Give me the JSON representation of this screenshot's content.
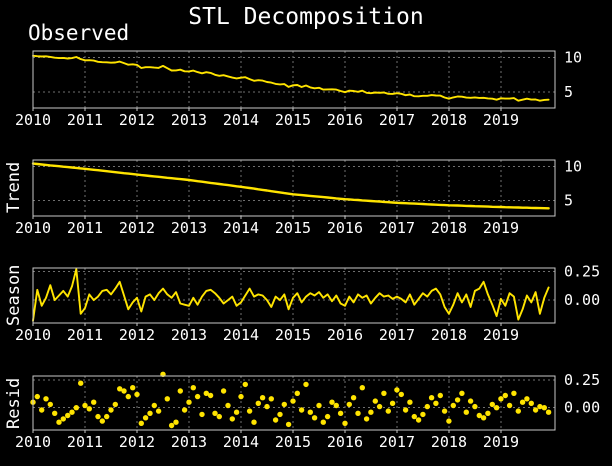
{
  "figure": {
    "title": "STL Decomposition",
    "background_color": "#000000",
    "text_color": "#ffffff",
    "series_color": "#ffe400",
    "grid_color": "#6f6f6f",
    "spine_color": "#c9c9c9"
  },
  "chart_data": [
    {
      "type": "line",
      "label": "Observed",
      "label_position": "top",
      "x_range": [
        2010,
        2020.04
      ],
      "points_per_year": 12,
      "x_ticks": [
        {
          "v": 2010,
          "label": "2010"
        },
        {
          "v": 2011,
          "label": "2011"
        },
        {
          "v": 2012,
          "label": "2012"
        },
        {
          "v": 2013,
          "label": "2013"
        },
        {
          "v": 2014,
          "label": "2014"
        },
        {
          "v": 2015,
          "label": "2015"
        },
        {
          "v": 2016,
          "label": "2016"
        },
        {
          "v": 2017,
          "label": "2017"
        },
        {
          "v": 2018,
          "label": "2018"
        },
        {
          "v": 2019,
          "label": "2019"
        }
      ],
      "y_ticks": [
        {
          "v": 10,
          "label": "10"
        },
        {
          "v": 5,
          "label": "5"
        }
      ],
      "ylim": [
        2.7,
        10.95
      ],
      "grid": true,
      "legend": "none",
      "values": [
        10.25,
        10.2,
        10.15,
        10.18,
        10.1,
        9.98,
        9.92,
        9.95,
        9.87,
        9.92,
        10.08,
        9.78,
        9.6,
        9.62,
        9.56,
        9.39,
        9.33,
        9.31,
        9.26,
        9.28,
        9.41,
        9.2,
        8.96,
        9.03,
        8.94,
        8.49,
        8.61,
        8.6,
        8.55,
        8.5,
        8.8,
        8.46,
        8.13,
        8.14,
        8.25,
        8.01,
        8.0,
        8.12,
        7.89,
        7.72,
        7.88,
        7.78,
        7.51,
        7.36,
        7.45,
        7.27,
        7.1,
        6.99,
        7.08,
        7.16,
        6.89,
        6.63,
        6.72,
        6.67,
        6.46,
        6.38,
        6.19,
        6.12,
        6.16,
        5.76,
        5.98,
        6.03,
        5.74,
        5.96,
        5.68,
        5.55,
        5.63,
        5.37,
        5.39,
        5.4,
        5.36,
        5.16,
        4.99,
        5.2,
        5.16,
        5.05,
        5.2,
        4.9,
        4.84,
        4.95,
        4.9,
        4.94,
        4.75,
        4.74,
        4.84,
        4.75,
        4.55,
        4.66,
        4.41,
        4.4,
        4.47,
        4.47,
        4.57,
        4.51,
        4.5,
        4.22,
        4.04,
        4.24,
        4.37,
        4.33,
        4.2,
        4.17,
        4.24,
        4.16,
        4.18,
        4.09,
        4.05,
        3.9,
        4.11,
        4.06,
        4.06,
        4.13,
        3.75,
        3.9,
        4.04,
        3.92,
        3.93,
        3.76,
        3.87,
        3.9
      ]
    },
    {
      "type": "line",
      "label": "Trend",
      "label_position": "left",
      "x_range": [
        2010,
        2020.04
      ],
      "points_per_year": 12,
      "x_ticks": [
        {
          "v": 2010,
          "label": "2010"
        },
        {
          "v": 2011,
          "label": "2011"
        },
        {
          "v": 2012,
          "label": "2012"
        },
        {
          "v": 2013,
          "label": "2013"
        },
        {
          "v": 2014,
          "label": "2014"
        },
        {
          "v": 2015,
          "label": "2015"
        },
        {
          "v": 2016,
          "label": "2016"
        },
        {
          "v": 2017,
          "label": "2017"
        },
        {
          "v": 2018,
          "label": "2018"
        },
        {
          "v": 2019,
          "label": "2019"
        }
      ],
      "y_ticks": [
        {
          "v": 10,
          "label": "10"
        },
        {
          "v": 5,
          "label": "5"
        }
      ],
      "ylim": [
        2.7,
        10.95
      ],
      "grid": true,
      "legend": "none",
      "values": [
        10.42,
        10.36,
        10.29,
        10.23,
        10.16,
        10.1,
        10.04,
        9.97,
        9.91,
        9.84,
        9.78,
        9.71,
        9.65,
        9.58,
        9.51,
        9.44,
        9.37,
        9.3,
        9.23,
        9.15,
        9.08,
        9.01,
        8.94,
        8.87,
        8.8,
        8.73,
        8.67,
        8.6,
        8.53,
        8.47,
        8.4,
        8.33,
        8.27,
        8.2,
        8.13,
        8.07,
        8.0,
        7.92,
        7.83,
        7.75,
        7.67,
        7.58,
        7.5,
        7.42,
        7.33,
        7.25,
        7.17,
        7.08,
        7.0,
        6.91,
        6.82,
        6.73,
        6.63,
        6.54,
        6.45,
        6.36,
        6.27,
        6.18,
        6.08,
        5.99,
        5.9,
        5.84,
        5.78,
        5.72,
        5.66,
        5.6,
        5.54,
        5.48,
        5.42,
        5.36,
        5.3,
        5.24,
        5.18,
        5.14,
        5.09,
        5.05,
        5.0,
        4.96,
        4.91,
        4.87,
        4.83,
        4.78,
        4.74,
        4.69,
        4.65,
        4.62,
        4.59,
        4.56,
        4.53,
        4.5,
        4.47,
        4.43,
        4.4,
        4.37,
        4.34,
        4.31,
        4.28,
        4.26,
        4.24,
        4.22,
        4.19,
        4.17,
        4.15,
        4.13,
        4.11,
        4.09,
        4.06,
        4.04,
        4.02,
        4.0,
        3.98,
        3.97,
        3.95,
        3.93,
        3.92,
        3.9,
        3.88,
        3.87,
        3.85,
        3.83
      ]
    },
    {
      "type": "line",
      "label": "Season",
      "label_position": "left",
      "x_range": [
        2010,
        2020.04
      ],
      "points_per_year": 12,
      "x_ticks": [
        {
          "v": 2010,
          "label": "2010"
        },
        {
          "v": 2011,
          "label": "2011"
        },
        {
          "v": 2012,
          "label": "2012"
        },
        {
          "v": 2013,
          "label": "2013"
        },
        {
          "v": 2014,
          "label": "2014"
        },
        {
          "v": 2015,
          "label": "2015"
        },
        {
          "v": 2016,
          "label": "2016"
        },
        {
          "v": 2017,
          "label": "2017"
        },
        {
          "v": 2018,
          "label": "2018"
        },
        {
          "v": 2019,
          "label": "2019"
        }
      ],
      "y_ticks": [
        {
          "v": 0.25,
          "label": "0.25"
        },
        {
          "v": 0.0,
          "label": "0.00"
        }
      ],
      "ylim": [
        -0.2,
        0.28
      ],
      "grid": true,
      "legend": "none",
      "values": [
        -0.18,
        0.09,
        -0.05,
        0.02,
        0.13,
        0.0,
        0.04,
        0.08,
        0.03,
        0.12,
        0.27,
        -0.12,
        -0.07,
        0.05,
        0.0,
        0.03,
        0.08,
        0.09,
        0.05,
        0.1,
        0.16,
        0.04,
        -0.08,
        -0.02,
        0.02,
        -0.1,
        0.03,
        0.05,
        0.0,
        0.06,
        0.1,
        0.05,
        0.02,
        0.07,
        -0.03,
        -0.04,
        -0.05,
        0.02,
        -0.04,
        0.03,
        0.08,
        0.09,
        0.06,
        0.02,
        -0.03,
        0.0,
        0.03,
        -0.05,
        -0.02,
        0.04,
        0.1,
        0.03,
        0.05,
        0.04,
        0.0,
        -0.06,
        0.03,
        0.0,
        0.05,
        -0.08,
        0.02,
        0.06,
        -0.02,
        0.03,
        0.06,
        0.04,
        0.07,
        0.02,
        0.05,
        -0.01,
        0.04,
        -0.03,
        -0.05,
        0.03,
        -0.02,
        0.05,
        0.02,
        0.04,
        -0.03,
        0.02,
        0.06,
        0.03,
        0.04,
        0.01,
        0.03,
        0.01,
        -0.02,
        0.05,
        -0.04,
        0.01,
        0.06,
        0.03,
        0.08,
        0.1,
        0.05,
        -0.06,
        -0.12,
        -0.04,
        0.06,
        -0.02,
        0.05,
        -0.06,
        0.08,
        0.1,
        0.16,
        0.05,
        -0.04,
        -0.14,
        0.01,
        -0.05,
        0.06,
        0.03,
        -0.17,
        -0.08,
        0.04,
        -0.02,
        0.07,
        -0.12,
        0.02,
        0.11
      ]
    },
    {
      "type": "scatter",
      "label": "Resid",
      "label_position": "left",
      "x_range": [
        2010,
        2020.04
      ],
      "points_per_year": 12,
      "x_ticks": [
        {
          "v": 2010,
          "label": "2010"
        },
        {
          "v": 2011,
          "label": "2011"
        },
        {
          "v": 2012,
          "label": "2012"
        },
        {
          "v": 2013,
          "label": "2013"
        },
        {
          "v": 2014,
          "label": "2014"
        },
        {
          "v": 2015,
          "label": "2015"
        },
        {
          "v": 2016,
          "label": "2016"
        },
        {
          "v": 2017,
          "label": "2017"
        },
        {
          "v": 2018,
          "label": "2018"
        },
        {
          "v": 2019,
          "label": "2019"
        }
      ],
      "y_ticks": [
        {
          "v": 0.25,
          "label": "0.25"
        },
        {
          "v": 0.0,
          "label": "0.00"
        }
      ],
      "ylim": [
        -0.2,
        0.285
      ],
      "grid": true,
      "legend": "none",
      "values": [
        0.05,
        0.1,
        -0.02,
        0.08,
        0.03,
        -0.05,
        -0.13,
        -0.1,
        -0.07,
        -0.04,
        0.0,
        0.22,
        0.02,
        -0.01,
        0.05,
        -0.08,
        -0.12,
        -0.08,
        -0.02,
        0.03,
        0.17,
        0.15,
        0.1,
        0.18,
        0.12,
        -0.14,
        -0.09,
        -0.05,
        0.02,
        -0.03,
        0.3,
        0.08,
        -0.16,
        -0.13,
        0.15,
        -0.02,
        0.05,
        0.18,
        0.1,
        -0.06,
        0.13,
        0.11,
        -0.05,
        -0.08,
        0.15,
        0.02,
        -0.1,
        -0.04,
        0.1,
        0.21,
        -0.03,
        -0.13,
        0.04,
        0.09,
        0.01,
        0.08,
        -0.11,
        -0.06,
        0.03,
        -0.15,
        0.06,
        0.13,
        -0.02,
        0.21,
        -0.04,
        -0.09,
        0.02,
        -0.13,
        -0.08,
        0.05,
        0.02,
        -0.05,
        -0.14,
        0.03,
        0.09,
        -0.05,
        0.18,
        -0.1,
        -0.04,
        0.06,
        0.01,
        0.13,
        -0.03,
        0.04,
        0.16,
        0.12,
        -0.02,
        0.05,
        -0.08,
        -0.11,
        -0.06,
        0.01,
        0.09,
        0.04,
        0.11,
        -0.03,
        -0.12,
        0.02,
        0.07,
        0.13,
        -0.04,
        0.06,
        0.01,
        -0.07,
        -0.09,
        -0.05,
        0.03,
        0.0,
        0.08,
        0.11,
        0.02,
        0.13,
        -0.03,
        0.05,
        0.08,
        0.04,
        -0.02,
        0.01,
        0.0,
        -0.04
      ]
    }
  ]
}
